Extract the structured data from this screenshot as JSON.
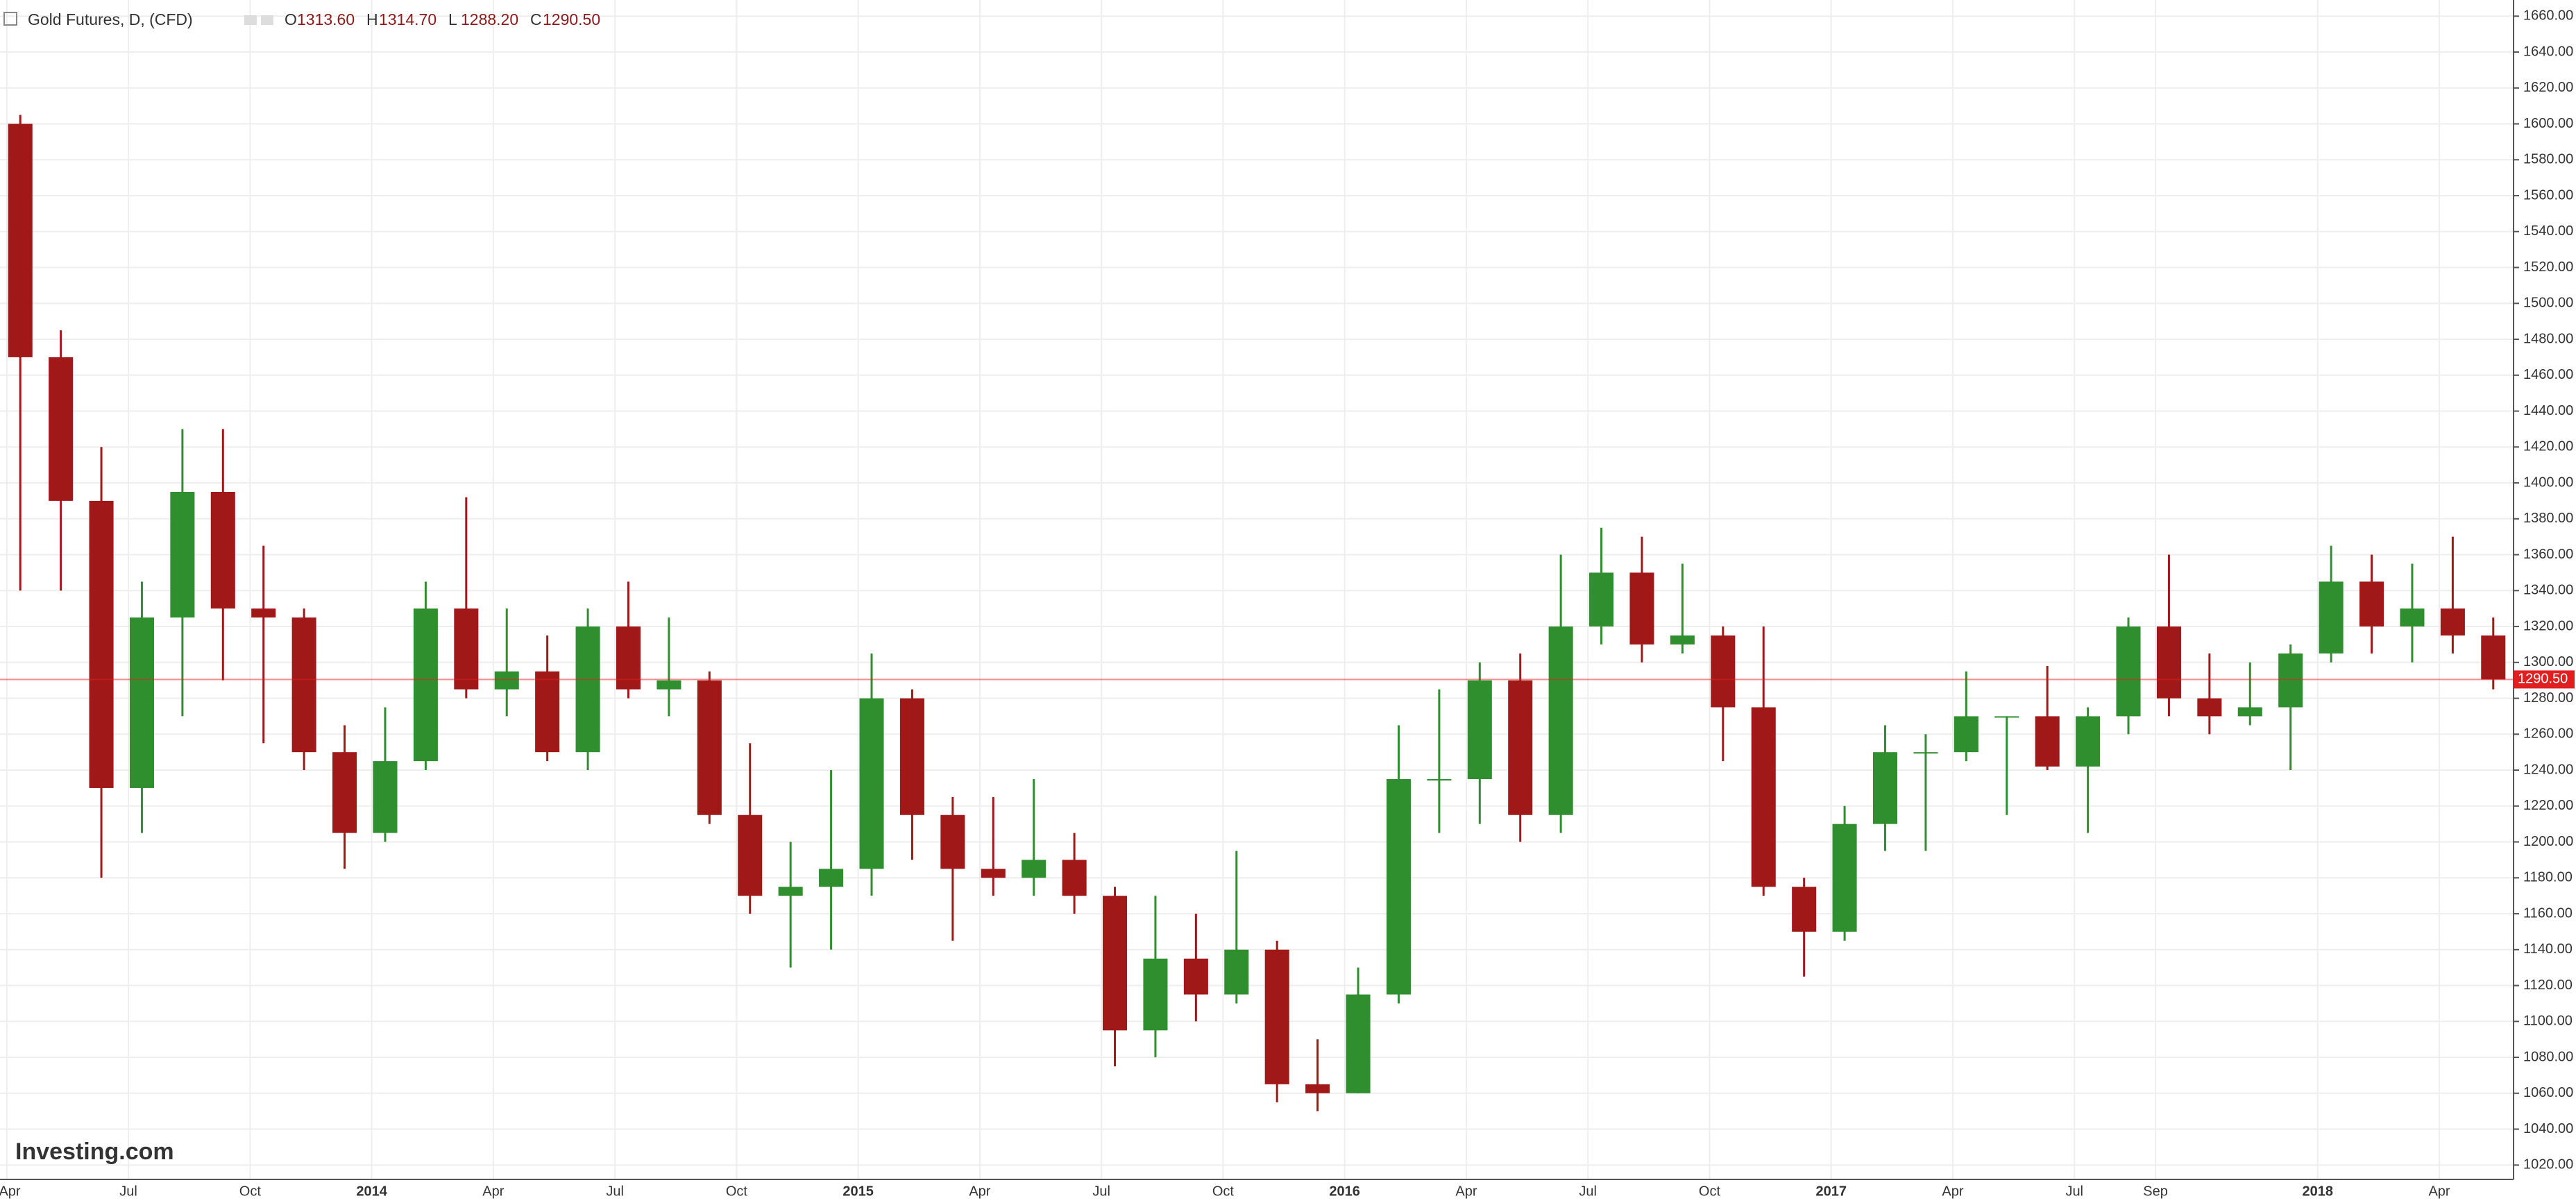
{
  "chart_data": {
    "type": "candlestick",
    "title": "Gold Futures, D, (CFD)",
    "header": [
      {
        "key": "O",
        "text": "1313.60"
      },
      {
        "key": "H",
        "text": "1314.70"
      },
      {
        "key": "L",
        "text": "1288.20"
      },
      {
        "key": "C",
        "text": "1290.50"
      }
    ],
    "watermark": "Investing.com",
    "categories": [
      "Apr",
      null,
      null,
      "Jul",
      null,
      null,
      "Oct",
      null,
      null,
      "2014",
      null,
      null,
      "Apr",
      null,
      null,
      "Jul",
      null,
      null,
      "Oct",
      null,
      null,
      "2015",
      null,
      null,
      "Apr",
      null,
      null,
      "Jul",
      null,
      null,
      "Oct",
      null,
      null,
      "2016",
      null,
      null,
      "Apr",
      null,
      null,
      "Jul",
      null,
      null,
      "Oct",
      null,
      null,
      "2017",
      null,
      null,
      "Apr",
      null,
      null,
      "Jul",
      null,
      "Sep",
      null,
      null,
      null,
      "2018",
      null,
      null,
      "Apr",
      null
    ],
    "up_color": "#2f8f2f",
    "down_color": "#a01818",
    "open": [
      1600,
      1470,
      1390,
      1230,
      1325,
      1395,
      1330,
      1325,
      1250,
      1205,
      1245,
      1330,
      1285,
      1295,
      1250,
      1320,
      1285,
      1290,
      1215,
      1170,
      1175,
      1185,
      1280,
      1215,
      1185,
      1180,
      1190,
      1170,
      1095,
      1135,
      1115,
      1140,
      1065,
      1060,
      1115,
      1235,
      1235,
      1290,
      1215,
      1320,
      1350,
      1310,
      1315,
      1275,
      1175,
      1150,
      1210,
      1250,
      1250,
      1270,
      1270,
      1242,
      1270,
      1320,
      1280,
      1270,
      1275,
      1305,
      1345,
      1320,
      1330,
      1315
    ],
    "high": [
      1605,
      1485,
      1420,
      1345,
      1430,
      1430,
      1365,
      1330,
      1265,
      1275,
      1345,
      1392,
      1330,
      1315,
      1330,
      1345,
      1325,
      1295,
      1255,
      1200,
      1240,
      1305,
      1285,
      1225,
      1225,
      1235,
      1205,
      1175,
      1170,
      1160,
      1195,
      1145,
      1090,
      1130,
      1265,
      1285,
      1300,
      1305,
      1360,
      1375,
      1370,
      1355,
      1320,
      1320,
      1180,
      1220,
      1265,
      1260,
      1295,
      1270,
      1298,
      1275,
      1325,
      1360,
      1305,
      1300,
      1310,
      1365,
      1360,
      1355,
      1370,
      1325
    ],
    "low": [
      1340,
      1340,
      1180,
      1205,
      1270,
      1290,
      1255,
      1240,
      1185,
      1200,
      1240,
      1280,
      1270,
      1245,
      1240,
      1280,
      1270,
      1210,
      1160,
      1130,
      1140,
      1170,
      1190,
      1145,
      1170,
      1170,
      1160,
      1075,
      1080,
      1100,
      1110,
      1055,
      1050,
      1060,
      1110,
      1205,
      1210,
      1200,
      1205,
      1310,
      1300,
      1305,
      1245,
      1170,
      1125,
      1145,
      1195,
      1195,
      1245,
      1215,
      1240,
      1205,
      1260,
      1270,
      1260,
      1265,
      1240,
      1300,
      1305,
      1300,
      1305,
      1285
    ],
    "close": [
      1470,
      1390,
      1230,
      1325,
      1395,
      1330,
      1325,
      1250,
      1205,
      1245,
      1330,
      1285,
      1295,
      1250,
      1320,
      1285,
      1290,
      1215,
      1170,
      1175,
      1185,
      1280,
      1215,
      1185,
      1180,
      1190,
      1170,
      1095,
      1135,
      1115,
      1140,
      1065,
      1060,
      1115,
      1235,
      1235,
      1290,
      1215,
      1320,
      1350,
      1310,
      1315,
      1275,
      1175,
      1150,
      1210,
      1250,
      1250,
      1270,
      1270,
      1242,
      1270,
      1320,
      1280,
      1270,
      1275,
      1305,
      1345,
      1320,
      1330,
      1315,
      1290.5
    ],
    "last_price": {
      "value": 1290.5,
      "label": "1290.50"
    },
    "last_price_color": "#e02020",
    "ylim": [
      1012,
      1669
    ],
    "yticks": [
      {
        "value": 1020,
        "label": "1020.00"
      },
      {
        "value": 1040,
        "label": "1040.00"
      },
      {
        "value": 1060,
        "label": "1060.00"
      },
      {
        "value": 1080,
        "label": "1080.00"
      },
      {
        "value": 1100,
        "label": "1100.00"
      },
      {
        "value": 1120,
        "label": "1120.00"
      },
      {
        "value": 1140,
        "label": "1140.00"
      },
      {
        "value": 1160,
        "label": "1160.00"
      },
      {
        "value": 1180,
        "label": "1180.00"
      },
      {
        "value": 1200,
        "label": "1200.00"
      },
      {
        "value": 1220,
        "label": "1220.00"
      },
      {
        "value": 1240,
        "label": "1240.00"
      },
      {
        "value": 1260,
        "label": "1260.00"
      },
      {
        "value": 1280,
        "label": "1280.00"
      },
      {
        "value": 1300,
        "label": "1300.00"
      },
      {
        "value": 1320,
        "label": "1320.00"
      },
      {
        "value": 1340,
        "label": "1340.00"
      },
      {
        "value": 1360,
        "label": "1360.00"
      },
      {
        "value": 1380,
        "label": "1380.00"
      },
      {
        "value": 1400,
        "label": "1400.00"
      },
      {
        "value": 1420,
        "label": "1420.00"
      },
      {
        "value": 1440,
        "label": "1440.00"
      },
      {
        "value": 1460,
        "label": "1460.00"
      },
      {
        "value": 1480,
        "label": "1480.00"
      },
      {
        "value": 1500,
        "label": "1500.00"
      },
      {
        "value": 1520,
        "label": "1520.00"
      },
      {
        "value": 1540,
        "label": "1540.00"
      },
      {
        "value": 1560,
        "label": "1560.00"
      },
      {
        "value": 1580,
        "label": "1580.00"
      },
      {
        "value": 1600,
        "label": "1600.00"
      },
      {
        "value": 1620,
        "label": "1620.00"
      },
      {
        "value": 1640,
        "label": "1640.00"
      },
      {
        "value": 1660,
        "label": "1660.00"
      }
    ],
    "grid": true
  }
}
